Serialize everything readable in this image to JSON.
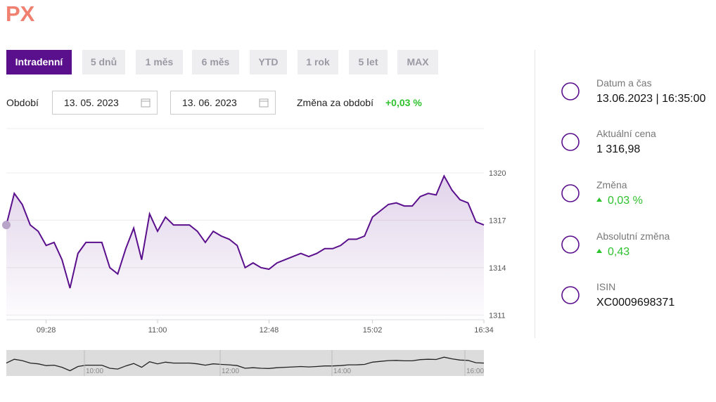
{
  "title": "PX",
  "tabs": [
    "Intradenní",
    "5 dnů",
    "1 měs",
    "6 měs",
    "YTD",
    "1 rok",
    "5 let",
    "MAX"
  ],
  "period": {
    "label": "Období",
    "from": "13. 05. 2023",
    "to": "13. 06. 2023",
    "change_label": "Změna za období",
    "change_value": "+0,03 %"
  },
  "info": [
    {
      "label": "Datum a čas",
      "value": "13.06.2023 | 16:35:00"
    },
    {
      "label": "Aktuální cena",
      "value": "1 316,98"
    },
    {
      "label": "Změna",
      "value": "0,03 %"
    },
    {
      "label": "Absolutní změna",
      "value": "0,43"
    },
    {
      "label": "ISIN",
      "value": "XC0009698371"
    }
  ],
  "chart_data": {
    "type": "line",
    "color": "#5a0f8c",
    "categories": [
      null,
      null,
      null,
      null,
      null,
      "09:28",
      null,
      null,
      null,
      null,
      null,
      null,
      null,
      null,
      null,
      null,
      null,
      null,
      null,
      "11:00",
      null,
      null,
      null,
      null,
      null,
      null,
      null,
      null,
      null,
      null,
      null,
      null,
      null,
      "12:48",
      null,
      null,
      null,
      null,
      null,
      null,
      null,
      null,
      null,
      null,
      null,
      null,
      "15:02",
      null,
      null,
      null,
      null,
      null,
      null,
      null,
      null,
      null,
      null,
      null,
      null,
      null,
      "16:34"
    ],
    "values": [
      1316.7,
      1318.7,
      1318.0,
      1316.7,
      1316.3,
      1315.4,
      1315.6,
      1314.5,
      1312.7,
      1314.9,
      1315.6,
      1315.6,
      1315.6,
      1314.0,
      1313.6,
      1315.2,
      1316.5,
      1314.5,
      1317.4,
      1316.3,
      1317.2,
      1316.7,
      1316.7,
      1316.7,
      1316.3,
      1315.6,
      1316.3,
      1316.0,
      1315.8,
      1315.4,
      1314.0,
      1314.3,
      1314.0,
      1313.9,
      1314.3,
      1314.5,
      1314.7,
      1314.9,
      1314.7,
      1314.9,
      1315.2,
      1315.2,
      1315.4,
      1315.8,
      1315.8,
      1316.0,
      1317.2,
      1317.6,
      1318.0,
      1318.1,
      1317.9,
      1317.9,
      1318.5,
      1318.7,
      1318.6,
      1319.8,
      1318.9,
      1318.3,
      1318.1,
      1316.9,
      1316.7
    ],
    "ylim": [
      1310.7,
      1322.8
    ],
    "yticks": [
      1311,
      1314,
      1317,
      1320
    ],
    "grid": true
  },
  "navigator": {
    "labels": [
      "10:00",
      "12:00",
      "14:00",
      "16:00"
    ]
  }
}
